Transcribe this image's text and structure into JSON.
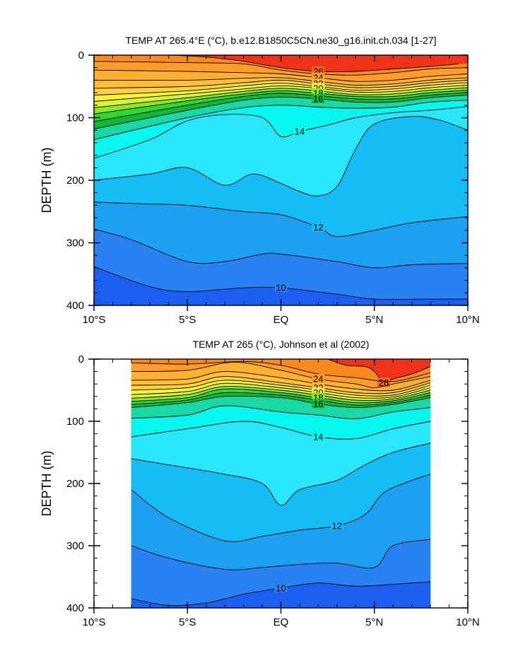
{
  "chart_data": [
    {
      "type": "heatmap",
      "subtype": "filled-contour",
      "title": "TEMP AT 265.4°E (°C), b.e12.B1850C5CN.ne30_g16.init.ch.034 [1-27]",
      "xlabel": "",
      "ylabel": "DEPTH (m)",
      "x_ticks": [
        "10°S",
        "5°S",
        "EQ",
        "5°N",
        "10°N"
      ],
      "x_tick_values": [
        -10,
        -5,
        0,
        5,
        10
      ],
      "y_ticks": [
        "0",
        "100",
        "200",
        "300",
        "400"
      ],
      "y_tick_values": [
        0,
        100,
        200,
        300,
        400
      ],
      "xlim": [
        -10,
        10
      ],
      "ylim": [
        400,
        0
      ],
      "data_extent_x": [
        -10,
        10
      ],
      "levels": [
        9,
        10,
        11,
        12,
        13,
        14,
        15,
        16,
        17,
        18,
        19,
        20,
        21,
        22,
        23,
        24,
        25,
        26,
        27
      ],
      "level_colors": [
        "#1a5ff0",
        "#2a82f2",
        "#1ea0f2",
        "#16bcf5",
        "#2ae6fb",
        "#08f5f0",
        "#1ad8a4",
        "#0fb83a",
        "#30d72e",
        "#8ee62c",
        "#d8f23a",
        "#f8f23a",
        "#ffd23c",
        "#ffbf38",
        "#ffb02e",
        "#ff9c2a",
        "#f8891e",
        "#f66620",
        "#ee3318"
      ],
      "series": [
        {
          "name": "",
          "level": 26,
          "label": "26",
          "x": [
            -6,
            -4,
            -2,
            0,
            2,
            4,
            6,
            8,
            9.5
          ],
          "y": [
            0,
            3,
            10,
            20,
            26,
            26,
            22,
            18,
            14
          ]
        },
        {
          "name": "",
          "level": 25,
          "label": "",
          "x": [
            -10,
            -5,
            -2,
            0,
            2,
            4,
            6,
            8,
            10
          ],
          "y": [
            10,
            12,
            14,
            24,
            30,
            32,
            28,
            22,
            20
          ]
        },
        {
          "name": "",
          "level": 24,
          "label": "24",
          "x": [
            -10,
            -5,
            -2,
            0,
            2,
            4,
            6,
            8,
            10
          ],
          "y": [
            24,
            26,
            28,
            30,
            36,
            42,
            40,
            34,
            30
          ]
        },
        {
          "name": "",
          "level": 23,
          "label": "",
          "x": [
            -10,
            -5,
            -2,
            0,
            2,
            4,
            6,
            8,
            10
          ],
          "y": [
            40,
            40,
            37,
            36,
            42,
            48,
            46,
            40,
            36
          ]
        },
        {
          "name": "",
          "level": 22,
          "label": "22",
          "x": [
            -10,
            -5,
            -2,
            0,
            2,
            4,
            6,
            8,
            10
          ],
          "y": [
            53,
            50,
            44,
            40,
            46,
            52,
            50,
            44,
            40
          ]
        },
        {
          "name": "",
          "level": 21,
          "label": "",
          "x": [
            -10,
            -5,
            -2,
            0,
            2,
            4,
            6,
            8,
            10
          ],
          "y": [
            64,
            57,
            49,
            45,
            50,
            56,
            54,
            48,
            44
          ]
        },
        {
          "name": "",
          "level": 20,
          "label": "20",
          "x": [
            -10,
            -5,
            -2,
            0,
            2,
            4,
            6,
            8,
            10
          ],
          "y": [
            74,
            62,
            54,
            49,
            53,
            59,
            58,
            52,
            48
          ]
        },
        {
          "name": "",
          "level": 19,
          "label": "",
          "x": [
            -10,
            -5,
            -2,
            0,
            2,
            4,
            6,
            8,
            10
          ],
          "y": [
            84,
            68,
            58,
            53,
            57,
            63,
            62,
            56,
            52
          ]
        },
        {
          "name": "",
          "level": 18,
          "label": "18",
          "x": [
            -10,
            -5,
            -2,
            0,
            2,
            4,
            6,
            8,
            10
          ],
          "y": [
            94,
            73,
            62,
            57,
            61,
            66,
            66,
            60,
            56
          ]
        },
        {
          "name": "",
          "level": 17,
          "label": "",
          "x": [
            -10,
            -5,
            -2,
            0,
            2,
            4,
            6,
            8,
            10
          ],
          "y": [
            106,
            80,
            66,
            61,
            65,
            70,
            70,
            64,
            60
          ]
        },
        {
          "name": "",
          "level": 16,
          "label": "16",
          "x": [
            -10,
            -5,
            -2,
            0,
            2,
            4,
            6,
            8,
            10
          ],
          "y": [
            118,
            88,
            72,
            67,
            70,
            75,
            75,
            68,
            64
          ]
        },
        {
          "name": "",
          "level": 15,
          "label": "",
          "x": [
            -10,
            -5,
            -2,
            0,
            2,
            4,
            6,
            8,
            10
          ],
          "y": [
            135,
            100,
            84,
            80,
            83,
            85,
            83,
            75,
            72
          ]
        },
        {
          "name": "",
          "level": 14,
          "label": "14",
          "x": [
            -10,
            -7,
            -5,
            -3,
            -1,
            0,
            1,
            2.5,
            4,
            6,
            8,
            10
          ],
          "y": [
            165,
            135,
            105,
            95,
            100,
            130,
            122,
            112,
            100,
            92,
            88,
            82
          ]
        },
        {
          "name": "",
          "level": 13,
          "label": "",
          "x": [
            -10,
            -7,
            -5,
            -3,
            -1.5,
            0,
            1,
            2,
            3,
            4,
            5,
            7,
            8.5,
            10
          ],
          "y": [
            200,
            190,
            180,
            208,
            190,
            205,
            218,
            225,
            210,
            150,
            110,
            98,
            104,
            120
          ]
        },
        {
          "name": "",
          "level": 12,
          "label": "12",
          "x": [
            -10,
            -7,
            -5,
            -2,
            0,
            2,
            3,
            5,
            7,
            10
          ],
          "y": [
            235,
            238,
            240,
            250,
            255,
            275,
            290,
            280,
            268,
            258
          ]
        },
        {
          "name": "",
          "level": 11,
          "label": "",
          "x": [
            -10,
            -8,
            -5,
            -3,
            -1,
            0,
            3,
            5,
            7,
            10
          ],
          "y": [
            278,
            295,
            330,
            330,
            318,
            318,
            330,
            340,
            335,
            333
          ]
        },
        {
          "name": "",
          "level": 10,
          "label": "10",
          "x": [
            -10,
            -7,
            -5,
            -2,
            0,
            3,
            5,
            8,
            10
          ],
          "y": [
            338,
            370,
            378,
            372,
            372,
            382,
            390,
            390,
            390
          ]
        }
      ]
    },
    {
      "type": "heatmap",
      "subtype": "filled-contour",
      "title": "TEMP AT 265 (°C), Johnson et al (2002)",
      "xlabel": "",
      "ylabel": "DEPTH (m)",
      "x_ticks": [
        "10°S",
        "5°S",
        "EQ",
        "5°N",
        "10°N"
      ],
      "x_tick_values": [
        -10,
        -5,
        0,
        5,
        10
      ],
      "y_ticks": [
        "0",
        "100",
        "200",
        "300",
        "400"
      ],
      "y_tick_values": [
        0,
        100,
        200,
        300,
        400
      ],
      "xlim": [
        -10,
        10
      ],
      "ylim": [
        400,
        0
      ],
      "data_extent_x": [
        -8,
        8
      ],
      "levels": [
        9,
        10,
        11,
        12,
        13,
        14,
        15,
        16,
        17,
        18,
        19,
        20,
        21,
        22,
        23,
        24,
        25,
        26,
        27
      ],
      "level_colors": [
        "#1a5ff0",
        "#2a82f2",
        "#1ea0f2",
        "#16bcf5",
        "#2ae6fb",
        "#08f5f0",
        "#1ad8a4",
        "#0fb83a",
        "#30d72e",
        "#8ee62c",
        "#d8f23a",
        "#f8f23a",
        "#ffd23c",
        "#ffbf38",
        "#ffb02e",
        "#ff9c2a",
        "#f8891e",
        "#f66620",
        "#ee3318"
      ],
      "series": [
        {
          "name": "",
          "level": 26,
          "label": "26",
          "x": [
            2.5,
            3.5,
            4.5,
            5,
            5.5,
            6,
            7,
            8
          ],
          "y": [
            0,
            10,
            12,
            20,
            38,
            32,
            24,
            12
          ]
        },
        {
          "name": "",
          "level": 25,
          "label": "",
          "x": [
            -8,
            -5,
            -2,
            0,
            2,
            4,
            6,
            8
          ],
          "y": [
            6,
            8,
            4,
            10,
            24,
            30,
            36,
            22
          ]
        },
        {
          "name": "",
          "level": 24,
          "label": "24",
          "x": [
            -8,
            -5,
            -2.5,
            0,
            2,
            4,
            5,
            6,
            8
          ],
          "y": [
            20,
            18,
            5,
            18,
            32,
            40,
            46,
            40,
            28
          ]
        },
        {
          "name": "",
          "level": 23,
          "label": "",
          "x": [
            -8,
            -5,
            -3,
            0,
            2,
            4,
            6,
            8
          ],
          "y": [
            34,
            32,
            20,
            30,
            40,
            48,
            50,
            34
          ]
        },
        {
          "name": "",
          "level": 22,
          "label": "22",
          "x": [
            -8,
            -5,
            -3,
            0,
            2,
            4,
            6,
            8
          ],
          "y": [
            42,
            40,
            28,
            38,
            46,
            54,
            54,
            38
          ]
        },
        {
          "name": "",
          "level": 21,
          "label": "",
          "x": [
            -8,
            -5,
            -3,
            0,
            2,
            4,
            6,
            8
          ],
          "y": [
            50,
            46,
            34,
            42,
            50,
            58,
            58,
            42
          ]
        },
        {
          "name": "",
          "level": 20,
          "label": "20",
          "x": [
            -8,
            -5,
            -3,
            0,
            2,
            4,
            6,
            8
          ],
          "y": [
            57,
            52,
            39,
            46,
            54,
            62,
            61,
            46
          ]
        },
        {
          "name": "",
          "level": 19,
          "label": "",
          "x": [
            -8,
            -5,
            -3,
            0,
            2,
            4,
            6,
            8
          ],
          "y": [
            63,
            57,
            44,
            50,
            58,
            66,
            64,
            50
          ]
        },
        {
          "name": "",
          "level": 18,
          "label": "18",
          "x": [
            -8,
            -5,
            -3,
            0,
            2,
            4,
            6,
            8
          ],
          "y": [
            68,
            62,
            48,
            54,
            62,
            70,
            67,
            54
          ]
        },
        {
          "name": "",
          "level": 17,
          "label": "",
          "x": [
            -8,
            -5,
            -3,
            0,
            2,
            4,
            6,
            8
          ],
          "y": [
            73,
            66,
            54,
            58,
            66,
            74,
            70,
            58
          ]
        },
        {
          "name": "",
          "level": 16,
          "label": "16",
          "x": [
            -8,
            -5,
            -3,
            0,
            2,
            4,
            6,
            8
          ],
          "y": [
            78,
            70,
            60,
            62,
            72,
            78,
            73,
            62
          ]
        },
        {
          "name": "",
          "level": 15,
          "label": "",
          "x": [
            -8,
            -5,
            -3,
            0,
            2,
            4,
            6,
            8
          ],
          "y": [
            95,
            90,
            75,
            85,
            90,
            96,
            85,
            78
          ]
        },
        {
          "name": "",
          "level": 14,
          "label": "14",
          "x": [
            -8,
            -5,
            -2,
            0,
            2,
            4,
            6,
            8
          ],
          "y": [
            125,
            112,
            100,
            110,
            125,
            128,
            112,
            100
          ]
        },
        {
          "name": "",
          "level": 13,
          "label": "",
          "x": [
            -8,
            -6,
            -3,
            -1,
            0,
            1,
            3,
            4.5,
            6,
            8
          ],
          "y": [
            160,
            170,
            185,
            200,
            235,
            210,
            195,
            170,
            150,
            135
          ]
        },
        {
          "name": "",
          "level": 12,
          "label": "12",
          "x": [
            -8,
            -6,
            -3,
            -1,
            1,
            3,
            4.5,
            5.5,
            7,
            8
          ],
          "y": [
            210,
            255,
            292,
            285,
            275,
            268,
            250,
            215,
            195,
            185
          ]
        },
        {
          "name": "",
          "level": 11,
          "label": "",
          "x": [
            -8,
            -6,
            -3,
            -1,
            1,
            3,
            5,
            6,
            8
          ],
          "y": [
            300,
            320,
            338,
            335,
            330,
            328,
            335,
            300,
            290
          ]
        },
        {
          "name": "",
          "level": 10,
          "label": "10",
          "x": [
            -8,
            -6,
            -4,
            -2,
            0,
            2,
            4,
            6,
            8
          ],
          "y": [
            385,
            396,
            392,
            378,
            368,
            360,
            365,
            362,
            358
          ]
        }
      ]
    }
  ]
}
